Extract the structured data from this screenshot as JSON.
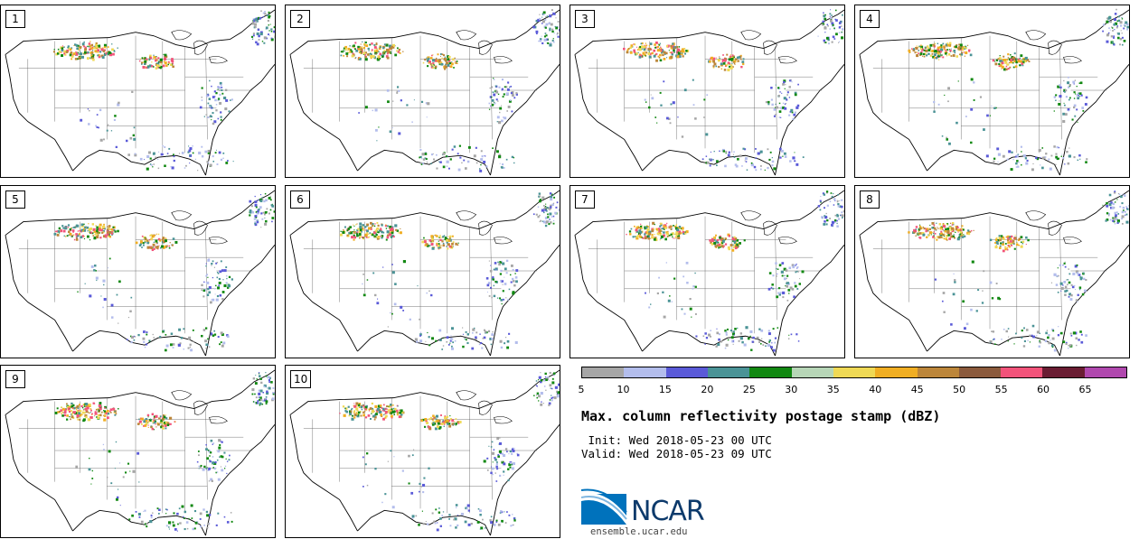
{
  "members": [
    {
      "label": "1"
    },
    {
      "label": "2"
    },
    {
      "label": "3"
    },
    {
      "label": "4"
    },
    {
      "label": "5"
    },
    {
      "label": "6"
    },
    {
      "label": "7"
    },
    {
      "label": "8"
    },
    {
      "label": "9"
    },
    {
      "label": "10"
    }
  ],
  "legend": {
    "colors": [
      "#a6a6a6",
      "#b3bdec",
      "#5a5ad8",
      "#4a9396",
      "#118811",
      "#b7d6b7",
      "#efd955",
      "#f0ae23",
      "#bc863a",
      "#8b5a3c",
      "#f2537a",
      "#6a1d33",
      "#b048ae"
    ],
    "ticks": [
      "5",
      "10",
      "15",
      "20",
      "25",
      "30",
      "35",
      "40",
      "45",
      "50",
      "55",
      "60",
      "65"
    ]
  },
  "title": "Max. column reflectivity postage stamp (dBZ)",
  "init": " Init: Wed 2018-05-23 00 UTC",
  "valid": "Valid: Wed 2018-05-23 09 UTC",
  "logo_text": "NCAR",
  "url": "ensemble.ucar.edu"
}
